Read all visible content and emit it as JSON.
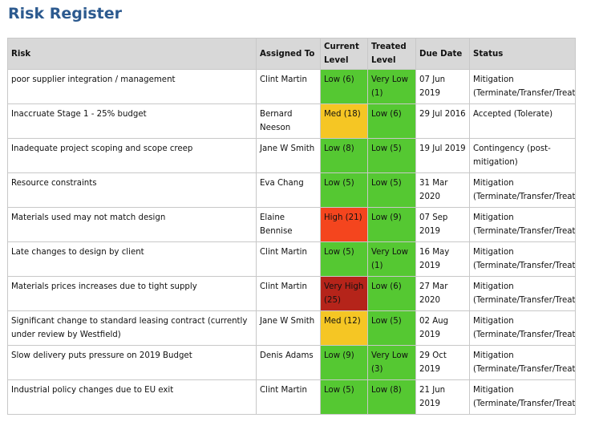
{
  "title": "Risk Register",
  "headers": {
    "risk": "Risk",
    "assigned": "Assigned To",
    "current": "Current Level",
    "treated": "Treated Level",
    "due": "Due Date",
    "status": "Status"
  },
  "level_colors": {
    "Low": "#55c832",
    "Very Low": "#55c832",
    "Med": "#f5c624",
    "High": "#f4451e",
    "Very High": "#b5241a"
  },
  "rows": [
    {
      "risk": "poor supplier integration / management",
      "assigned": "Clint Martin",
      "current": "Low (6)",
      "current_level": "Low",
      "treated": "Very Low (1)",
      "treated_level": "Very Low",
      "due": "07 Jun 2019",
      "status": "Mitigation (Terminate/Transfer/Treat)"
    },
    {
      "risk": "Inaccruate Stage 1 - 25% budget",
      "assigned": "Bernard Neeson",
      "current": "Med (18)",
      "current_level": "Med",
      "treated": "Low (6)",
      "treated_level": "Low",
      "due": "29 Jul 2016",
      "status": "Accepted (Tolerate)"
    },
    {
      "risk": "Inadequate project scoping and scope creep",
      "assigned": "Jane W Smith",
      "current": "Low (8)",
      "current_level": "Low",
      "treated": "Low (5)",
      "treated_level": "Low",
      "due": "19 Jul 2019",
      "status": "Contingency (post-mitigation)"
    },
    {
      "risk": "Resource constraints",
      "assigned": "Eva Chang",
      "current": "Low (5)",
      "current_level": "Low",
      "treated": "Low (5)",
      "treated_level": "Low",
      "due": "31 Mar 2020",
      "status": "Mitigation (Terminate/Transfer/Treat)"
    },
    {
      "risk": "Materials used may not match design",
      "assigned": "Elaine Bennise",
      "current": "High (21)",
      "current_level": "High",
      "treated": "Low (9)",
      "treated_level": "Low",
      "due": "07 Sep 2019",
      "status": "Mitigation (Terminate/Transfer/Treat)"
    },
    {
      "risk": "Late changes to design by client",
      "assigned": "Clint Martin",
      "current": "Low (5)",
      "current_level": "Low",
      "treated": "Very Low (1)",
      "treated_level": "Very Low",
      "due": "16 May 2019",
      "status": "Mitigation (Terminate/Transfer/Treat)"
    },
    {
      "risk": "Materials prices increases due to tight supply",
      "assigned": "Clint Martin",
      "current": "Very High (25)",
      "current_level": "Very High",
      "treated": "Low (6)",
      "treated_level": "Low",
      "due": "27 Mar 2020",
      "status": "Mitigation (Terminate/Transfer/Treat)"
    },
    {
      "risk": "Significant change to standard leasing contract (currently under review by Westfield)",
      "assigned": "Jane W Smith",
      "current": "Med (12)",
      "current_level": "Med",
      "treated": "Low (5)",
      "treated_level": "Low",
      "due": "02 Aug 2019",
      "status": "Mitigation (Terminate/Transfer/Treat)"
    },
    {
      "risk": "Slow delivery puts pressure on 2019 Budget",
      "assigned": "Denis Adams",
      "current": "Low (9)",
      "current_level": "Low",
      "treated": "Very Low (3)",
      "treated_level": "Very Low",
      "due": "29 Oct 2019",
      "status": "Mitigation (Terminate/Transfer/Treat)"
    },
    {
      "risk": "Industrial policy changes due to EU exit",
      "assigned": "Clint Martin",
      "current": "Low (5)",
      "current_level": "Low",
      "treated": "Low (8)",
      "treated_level": "Low",
      "due": "21 Jun 2019",
      "status": "Mitigation (Terminate/Transfer/Treat)"
    }
  ]
}
